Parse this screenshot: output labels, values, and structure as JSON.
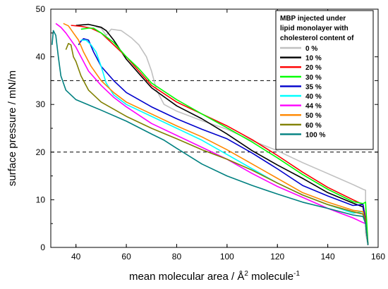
{
  "chart_data": {
    "type": "line",
    "xlabel": "mean molecular area / Å² molecule⁻¹",
    "xlabel_main": "mean molecular area / Å",
    "xlabel_sup": "2",
    "xlabel_mid": " molecule",
    "xlabel_sup2": "-1",
    "ylabel": "surface pressure / mN/m",
    "xlim": [
      30,
      160
    ],
    "ylim": [
      0,
      50
    ],
    "xticks": [
      40,
      60,
      80,
      100,
      120,
      140,
      160
    ],
    "yticks": [
      0,
      10,
      20,
      30,
      40,
      50
    ],
    "reference_lines": [
      35,
      20
    ],
    "legend_title": [
      "MBP injected under",
      "lipid monolayer with",
      "cholesterol content of"
    ],
    "legend_position": "top-right",
    "grid": false,
    "series": [
      {
        "name": "0 %",
        "color": "#c0c0c0",
        "points": [
          [
            156,
            0.5
          ],
          [
            155,
            3
          ],
          [
            155,
            12
          ],
          [
            154,
            12.2
          ],
          [
            150,
            13.2
          ],
          [
            140,
            15.5
          ],
          [
            130,
            17.8
          ],
          [
            120,
            20.3
          ],
          [
            110,
            22.4
          ],
          [
            100,
            24.8
          ],
          [
            90,
            26.6
          ],
          [
            80,
            28.6
          ],
          [
            75,
            30
          ],
          [
            72,
            33
          ],
          [
            70,
            37
          ],
          [
            68,
            40
          ],
          [
            65,
            42.5
          ],
          [
            62,
            44
          ],
          [
            58,
            45.5
          ],
          [
            54,
            45.8
          ],
          [
            52,
            44.5
          ],
          [
            50,
            46
          ],
          [
            48,
            46.3
          ]
        ]
      },
      {
        "name": "10 %",
        "color": "#000000",
        "points": [
          [
            156,
            0.5
          ],
          [
            155,
            5
          ],
          [
            154,
            8.5
          ],
          [
            150,
            9.3
          ],
          [
            140,
            11.5
          ],
          [
            130,
            14.5
          ],
          [
            120,
            17.3
          ],
          [
            110,
            20.3
          ],
          [
            100,
            23.8
          ],
          [
            90,
            27
          ],
          [
            80,
            29.7
          ],
          [
            70,
            33.5
          ],
          [
            65,
            36.5
          ],
          [
            60,
            39.5
          ],
          [
            55,
            43.5
          ],
          [
            52,
            45.5
          ],
          [
            50,
            46.2
          ],
          [
            45,
            46.8
          ],
          [
            40,
            46.6
          ]
        ]
      },
      {
        "name": "20 %",
        "color": "#ff0000",
        "points": [
          [
            156,
            0.5
          ],
          [
            155,
            6
          ],
          [
            154,
            9
          ],
          [
            150,
            10
          ],
          [
            140,
            12.6
          ],
          [
            130,
            15.8
          ],
          [
            120,
            19.3
          ],
          [
            110,
            22.6
          ],
          [
            100,
            25.5
          ],
          [
            90,
            28
          ],
          [
            80,
            30.5
          ],
          [
            70,
            34
          ],
          [
            65,
            37
          ],
          [
            60,
            40
          ],
          [
            55,
            42.5
          ],
          [
            50,
            45
          ],
          [
            46,
            46
          ],
          [
            42,
            46.4
          ],
          [
            38,
            46.6
          ]
        ]
      },
      {
        "name": "30 %",
        "color": "#00ff00",
        "points": [
          [
            156,
            0.5
          ],
          [
            155,
            9.5
          ],
          [
            154,
            9.2
          ],
          [
            150,
            9.6
          ],
          [
            140,
            12.2
          ],
          [
            130,
            15.3
          ],
          [
            120,
            18.8
          ],
          [
            110,
            22.1
          ],
          [
            100,
            25.1
          ],
          [
            90,
            28
          ],
          [
            80,
            31
          ],
          [
            70,
            34.5
          ],
          [
            65,
            37.5
          ],
          [
            60,
            40
          ],
          [
            55,
            43
          ],
          [
            50,
            45
          ],
          [
            47,
            46
          ],
          [
            45,
            46
          ],
          [
            42,
            45.8
          ]
        ]
      },
      {
        "name": "35 %",
        "color": "#0000cc",
        "points": [
          [
            156,
            0.5
          ],
          [
            155,
            5
          ],
          [
            154,
            9
          ],
          [
            150,
            8.8
          ],
          [
            140,
            10.8
          ],
          [
            130,
            13
          ],
          [
            120,
            16.5
          ],
          [
            110,
            19.8
          ],
          [
            100,
            22.8
          ],
          [
            90,
            24.8
          ],
          [
            80,
            27
          ],
          [
            70,
            29.5
          ],
          [
            60,
            32.5
          ],
          [
            55,
            35
          ],
          [
            50,
            38
          ],
          [
            47,
            41
          ],
          [
            45,
            43.5
          ],
          [
            43,
            43.8
          ],
          [
            42,
            43.3
          ],
          [
            41,
            42.5
          ]
        ]
      },
      {
        "name": "40 %",
        "color": "#00ffff",
        "points": [
          [
            156,
            0.5
          ],
          [
            155,
            5
          ],
          [
            154,
            7.5
          ],
          [
            150,
            7.2
          ],
          [
            140,
            9
          ],
          [
            130,
            11
          ],
          [
            120,
            13.5
          ],
          [
            110,
            16.5
          ],
          [
            100,
            19.5
          ],
          [
            90,
            22.5
          ],
          [
            80,
            25
          ],
          [
            70,
            27.5
          ],
          [
            60,
            30
          ],
          [
            55,
            32
          ],
          [
            52,
            34.5
          ],
          [
            50,
            38
          ],
          [
            48,
            41
          ],
          [
            46,
            42.5
          ],
          [
            44,
            43.5
          ],
          [
            42,
            43.5
          ]
        ]
      },
      {
        "name": "44 %",
        "color": "#ff00ff",
        "points": [
          [
            156,
            0.5
          ],
          [
            155,
            5
          ],
          [
            154,
            5.2
          ],
          [
            150,
            6.2
          ],
          [
            140,
            8.2
          ],
          [
            130,
            10.5
          ],
          [
            120,
            12.8
          ],
          [
            110,
            15.5
          ],
          [
            100,
            18.5
          ],
          [
            90,
            21
          ],
          [
            80,
            23.5
          ],
          [
            70,
            26
          ],
          [
            60,
            29.5
          ],
          [
            55,
            31.5
          ],
          [
            50,
            34
          ],
          [
            45,
            37
          ],
          [
            42,
            40
          ],
          [
            40,
            42
          ],
          [
            38,
            43.5
          ],
          [
            36,
            45
          ],
          [
            34,
            46.2
          ],
          [
            32,
            47
          ]
        ]
      },
      {
        "name": "50 %",
        "color": "#ff8800",
        "points": [
          [
            156,
            0.5
          ],
          [
            155,
            5
          ],
          [
            154,
            7.5
          ],
          [
            150,
            7.8
          ],
          [
            140,
            9.5
          ],
          [
            130,
            11.5
          ],
          [
            120,
            14.5
          ],
          [
            110,
            17.5
          ],
          [
            100,
            20.5
          ],
          [
            90,
            23.2
          ],
          [
            80,
            25.5
          ],
          [
            70,
            28
          ],
          [
            60,
            30.5
          ],
          [
            55,
            32.5
          ],
          [
            50,
            35
          ],
          [
            46,
            38
          ],
          [
            43,
            41
          ],
          [
            41,
            43.5
          ],
          [
            39,
            45
          ],
          [
            37,
            46.5
          ],
          [
            35,
            47
          ]
        ]
      },
      {
        "name": "60 %",
        "color": "#808000",
        "points": [
          [
            156,
            0.5
          ],
          [
            155,
            5
          ],
          [
            154,
            7
          ],
          [
            150,
            7.5
          ],
          [
            140,
            9
          ],
          [
            130,
            11
          ],
          [
            120,
            13.5
          ],
          [
            110,
            16.2
          ],
          [
            100,
            18.5
          ],
          [
            90,
            20.5
          ],
          [
            80,
            22.8
          ],
          [
            70,
            25
          ],
          [
            60,
            27.5
          ],
          [
            50,
            30.5
          ],
          [
            45,
            33
          ],
          [
            42,
            36
          ],
          [
            40,
            39
          ],
          [
            39,
            40
          ],
          [
            38,
            42.5
          ],
          [
            37,
            42.8
          ],
          [
            36,
            41.5
          ]
        ]
      },
      {
        "name": "100 %",
        "color": "#008080",
        "points": [
          [
            156,
            0.5
          ],
          [
            155,
            5
          ],
          [
            154,
            6.5
          ],
          [
            150,
            6.8
          ],
          [
            140,
            8.2
          ],
          [
            130,
            9.5
          ],
          [
            120,
            11.2
          ],
          [
            110,
            13
          ],
          [
            100,
            15
          ],
          [
            90,
            17.5
          ],
          [
            80,
            20.8
          ],
          [
            75,
            22.5
          ],
          [
            70,
            23.8
          ],
          [
            60,
            26.5
          ],
          [
            50,
            28.8
          ],
          [
            40,
            31
          ],
          [
            36,
            33
          ],
          [
            34,
            36
          ],
          [
            33,
            40
          ],
          [
            32,
            44.5
          ],
          [
            31,
            45.5
          ],
          [
            30.5,
            42.5
          ]
        ]
      }
    ]
  }
}
